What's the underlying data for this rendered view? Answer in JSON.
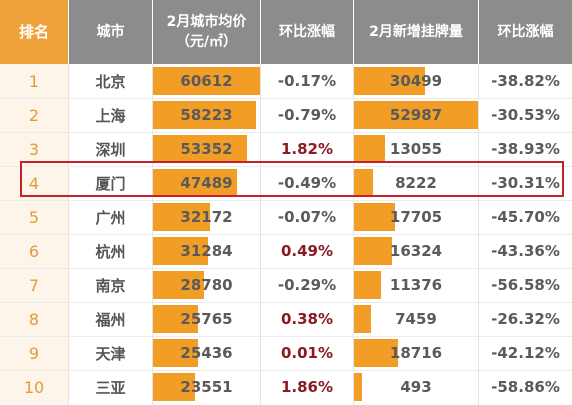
{
  "headers": {
    "rank": "排名",
    "city": "城市",
    "price_line1": "2月城市均价",
    "price_line2": "（元/㎡）",
    "price_change": "环比涨幅",
    "listings": "2月新增挂牌量",
    "listings_change": "环比涨幅"
  },
  "colors": {
    "rank_header_bg": "#f0a23a",
    "header_bg": "#8c8c8c",
    "bar_color": "#f29e26",
    "positive_change": "#8b1a22",
    "highlight_border": "#c8202a"
  },
  "bar_scale": {
    "price_max": 60612,
    "listings_max": 52987
  },
  "highlighted_rank": "4",
  "rows": [
    {
      "rank": "1",
      "city": "北京",
      "price": "60612",
      "price_value": 60612,
      "price_change": "-0.17%",
      "price_change_positive": false,
      "listings": "30499",
      "listings_value": 30499,
      "listings_change": "-38.82%"
    },
    {
      "rank": "2",
      "city": "上海",
      "price": "58223",
      "price_value": 58223,
      "price_change": "-0.79%",
      "price_change_positive": false,
      "listings": "52987",
      "listings_value": 52987,
      "listings_change": "-30.53%"
    },
    {
      "rank": "3",
      "city": "深圳",
      "price": "53352",
      "price_value": 53352,
      "price_change": "1.82%",
      "price_change_positive": true,
      "listings": "13055",
      "listings_value": 13055,
      "listings_change": "-38.93%"
    },
    {
      "rank": "4",
      "city": "厦门",
      "price": "47489",
      "price_value": 47489,
      "price_change": "-0.49%",
      "price_change_positive": false,
      "listings": "8222",
      "listings_value": 8222,
      "listings_change": "-30.31%"
    },
    {
      "rank": "5",
      "city": "广州",
      "price": "32172",
      "price_value": 32172,
      "price_change": "-0.07%",
      "price_change_positive": false,
      "listings": "17705",
      "listings_value": 17705,
      "listings_change": "-45.70%"
    },
    {
      "rank": "6",
      "city": "杭州",
      "price": "31284",
      "price_value": 31284,
      "price_change": "0.49%",
      "price_change_positive": true,
      "listings": "16324",
      "listings_value": 16324,
      "listings_change": "-43.36%"
    },
    {
      "rank": "7",
      "city": "南京",
      "price": "28780",
      "price_value": 28780,
      "price_change": "-0.29%",
      "price_change_positive": false,
      "listings": "11376",
      "listings_value": 11376,
      "listings_change": "-56.58%"
    },
    {
      "rank": "8",
      "city": "福州",
      "price": "25765",
      "price_value": 25765,
      "price_change": "0.38%",
      "price_change_positive": true,
      "listings": "7459",
      "listings_value": 7459,
      "listings_change": "-26.32%"
    },
    {
      "rank": "9",
      "city": "天津",
      "price": "25436",
      "price_value": 25436,
      "price_change": "0.01%",
      "price_change_positive": true,
      "listings": "18716",
      "listings_value": 18716,
      "listings_change": "-42.12%"
    },
    {
      "rank": "10",
      "city": "三亚",
      "price": "23551",
      "price_value": 23551,
      "price_change": "1.86%",
      "price_change_positive": true,
      "listings": "493",
      "listings_value": 493,
      "listings_change": "-58.86%"
    }
  ]
}
